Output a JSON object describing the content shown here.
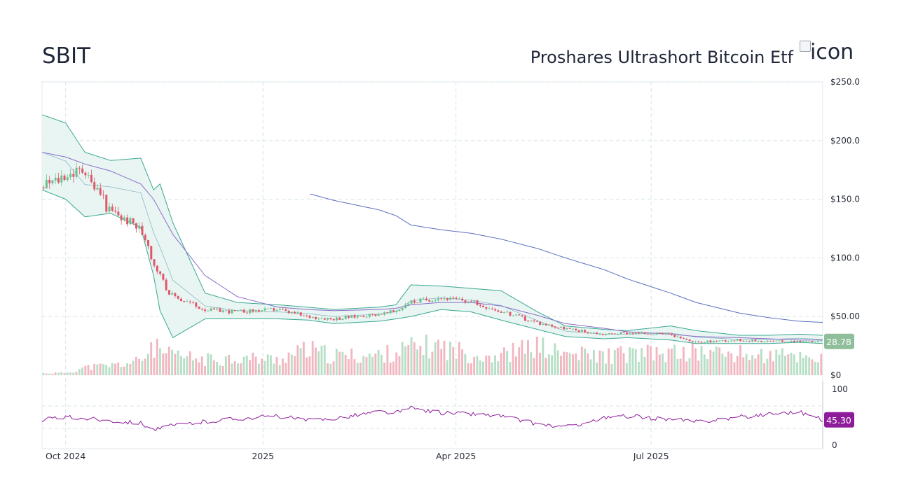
{
  "header": {
    "ticker": "SBIT",
    "company": "Proshares Ultrashort Bitcoin Etf",
    "logo_alt": "icon"
  },
  "colors": {
    "up": "#6dbf8f",
    "down": "#e0576a",
    "band_line": "#3aa88f",
    "band_fill": "#e6f4f2",
    "ma_mid": "#8fb8c2",
    "ma_50": "#8c6bc9",
    "ma_200": "#5b6fbf",
    "rsi": "#8e1c9a",
    "grid": "#d5e3e8",
    "last_price_tag": "#8fbf9a",
    "rsi_tag": "#8e1c9a"
  },
  "chart_data": {
    "type": "candlestick",
    "title": "SBIT",
    "price_axis": {
      "ticks": [
        "$250.0",
        "$200.0",
        "$150.0",
        "$100.0",
        "$50.00",
        "$0"
      ],
      "ylim": [
        0,
        250
      ]
    },
    "x_axis": {
      "ticks": [
        "Oct 2024",
        "2025",
        "Apr 2025",
        "Jul 2025"
      ]
    },
    "last_price": "28.78",
    "anchors": {
      "dates": [
        "2024-09-20",
        "2024-10-01",
        "2024-10-10",
        "2024-10-22",
        "2024-11-05",
        "2024-11-11",
        "2024-11-14",
        "2024-11-20",
        "2024-12-05",
        "2024-12-20",
        "2025-01-08",
        "2025-01-22",
        "2025-02-03",
        "2025-02-24",
        "2025-03-04",
        "2025-03-11",
        "2025-03-25",
        "2025-04-08",
        "2025-04-22",
        "2025-05-09",
        "2025-05-22",
        "2025-06-09",
        "2025-06-20",
        "2025-07-10",
        "2025-07-22",
        "2025-08-11",
        "2025-08-25",
        "2025-09-08",
        "2025-09-19"
      ],
      "close": [
        160,
        170,
        175,
        140,
        125,
        100,
        85,
        68,
        56,
        54,
        56,
        50,
        48,
        52,
        54,
        62,
        66,
        63,
        55,
        45,
        40,
        35,
        36,
        35,
        28,
        30,
        29,
        29,
        28.78
      ],
      "bb_upper": [
        222,
        215,
        190,
        183,
        185,
        158,
        163,
        130,
        70,
        62,
        60,
        58,
        56,
        58,
        60,
        77,
        76,
        74,
        72,
        54,
        42,
        39,
        38,
        42,
        38,
        34,
        34,
        35,
        34
      ],
      "bb_lower": [
        158,
        150,
        135,
        138,
        126,
        85,
        55,
        32,
        48,
        48,
        48,
        47,
        44,
        46,
        48,
        50,
        56,
        54,
        47,
        39,
        33,
        31,
        32,
        30,
        27,
        27,
        27,
        28,
        27
      ],
      "ma_50": [
        190,
        186,
        180,
        174,
        163,
        150,
        140,
        120,
        85,
        67,
        58,
        56,
        55,
        56,
        57,
        60,
        62,
        62,
        59,
        51,
        44,
        40,
        37,
        35,
        33,
        32,
        31,
        30,
        30
      ],
      "ma_200": [
        null,
        null,
        null,
        null,
        null,
        null,
        null,
        null,
        null,
        null,
        null,
        155,
        149,
        141,
        136,
        128,
        124,
        121,
        116,
        108,
        100,
        90,
        82,
        70,
        62,
        53,
        49,
        46,
        45
      ]
    },
    "volume": {
      "relative": [
        0.05,
        0.06,
        0.2,
        0.25,
        0.35,
        0.8,
        0.6,
        0.5,
        0.4,
        0.45,
        0.4,
        0.65,
        0.5,
        0.5,
        0.6,
        0.7,
        0.75,
        0.55,
        0.5,
        0.75,
        0.55,
        0.5,
        0.55,
        0.55,
        0.6,
        0.55,
        0.5,
        0.5,
        0.45
      ]
    },
    "rsi": {
      "ticks": [
        "100",
        "0"
      ],
      "ylim": [
        0,
        100
      ],
      "levels": [
        70,
        30
      ],
      "last": "45.30",
      "values": [
        45,
        50,
        48,
        44,
        40,
        28,
        30,
        35,
        42,
        48,
        52,
        44,
        48,
        60,
        58,
        66,
        58,
        56,
        52,
        38,
        32,
        48,
        52,
        46,
        42,
        50,
        56,
        60,
        45.3
      ]
    }
  }
}
